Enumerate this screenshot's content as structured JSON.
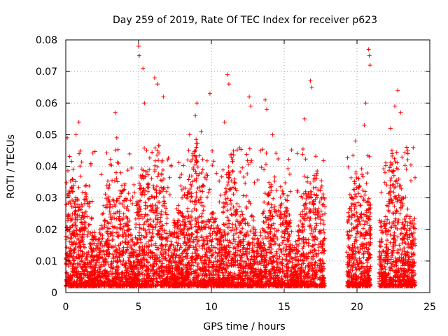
{
  "chart_data": {
    "type": "scatter",
    "title": "Day 259 of 2019, Rate Of TEC Index for receiver p623",
    "xlabel": "GPS time / hours",
    "ylabel": "ROTI / TECUs",
    "xlim": [
      0,
      25
    ],
    "ylim": [
      0,
      0.08
    ],
    "xticks": [
      0,
      5,
      10,
      15,
      20,
      25
    ],
    "yticks": [
      0,
      0.01,
      0.02,
      0.03,
      0.04,
      0.05,
      0.06,
      0.07,
      0.08
    ],
    "xtick_labels": [
      "0",
      "5",
      "10",
      "15",
      "20",
      "25"
    ],
    "ytick_labels": [
      "0",
      "0.01",
      "0.02",
      "0.03",
      "0.04",
      "0.05",
      "0.06",
      "0.07",
      "0.08"
    ],
    "grid": true,
    "marker": "+",
    "color": "#ff0000",
    "data_gaps_hours": [
      [
        17.8,
        19.3
      ],
      [
        20.95,
        21.5
      ]
    ],
    "series": [
      {
        "x": [
          0.1,
          0.5,
          0.7,
          0.9,
          1.4,
          3.4,
          3.5,
          5.0,
          5.05,
          5.3,
          5.4,
          6.1,
          6.3,
          6.7,
          8.5,
          8.9,
          9.0,
          9.3,
          9.9,
          10.9,
          11.1,
          11.2,
          12.6,
          12.7,
          13.7,
          13.8,
          14.2,
          16.4,
          16.8,
          16.9,
          19.9,
          20.5,
          20.6,
          20.8,
          20.85,
          20.9,
          22.3,
          22.4,
          22.6,
          22.8,
          23.0,
          23.5
        ],
        "y": [
          0.049,
          0.039,
          0.05,
          0.054,
          0.034,
          0.057,
          0.049,
          0.078,
          0.075,
          0.071,
          0.06,
          0.068,
          0.066,
          0.062,
          0.05,
          0.056,
          0.06,
          0.051,
          0.063,
          0.054,
          0.069,
          0.066,
          0.062,
          0.059,
          0.061,
          0.058,
          0.05,
          0.055,
          0.067,
          0.065,
          0.048,
          0.053,
          0.06,
          0.077,
          0.075,
          0.072,
          0.052,
          0.045,
          0.059,
          0.064,
          0.057,
          0.044
        ]
      }
    ]
  }
}
